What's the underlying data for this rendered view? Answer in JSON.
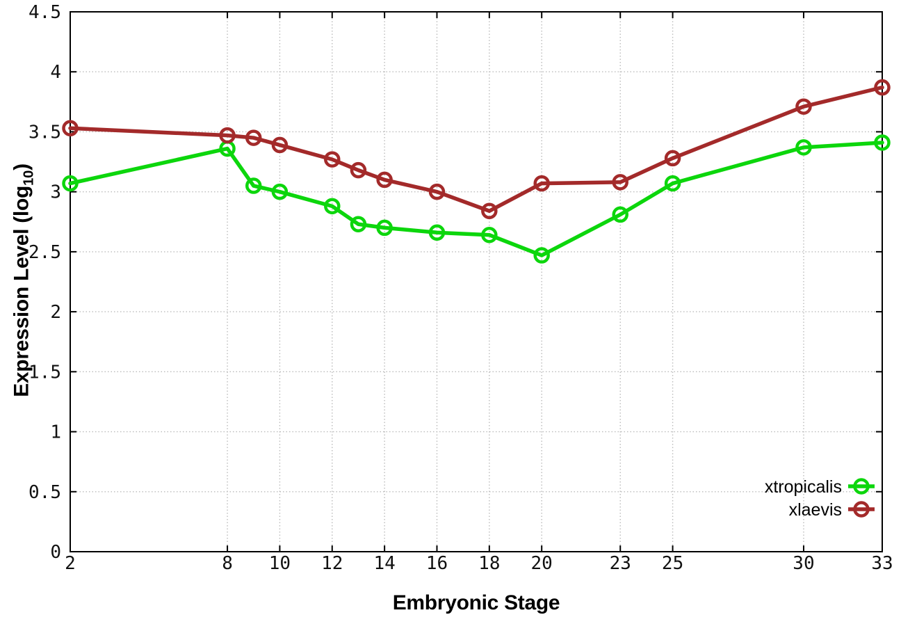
{
  "chart_data": {
    "type": "line",
    "title": "",
    "xlabel": "Embryonic Stage",
    "ylabel": "Expression Level (log10)",
    "ylabel_parts": {
      "pre": "Expression Level (log",
      "sub": "10",
      "post": ")"
    },
    "x_range": [
      2,
      33
    ],
    "y_range": [
      0,
      4.5
    ],
    "x_ticks": [
      {
        "v": 2,
        "label": "2"
      },
      {
        "v": 8,
        "label": "8"
      },
      {
        "v": 10,
        "label": "10"
      },
      {
        "v": 12,
        "label": "12"
      },
      {
        "v": 14,
        "label": "14"
      },
      {
        "v": 16,
        "label": "16"
      },
      {
        "v": 18,
        "label": "18"
      },
      {
        "v": 20,
        "label": "20"
      },
      {
        "v": 23,
        "label": "23"
      },
      {
        "v": 25,
        "label": "25"
      },
      {
        "v": 30,
        "label": "30"
      },
      {
        "v": 33,
        "label": "33"
      }
    ],
    "y_ticks": [
      {
        "v": 0,
        "label": "0"
      },
      {
        "v": 0.5,
        "label": "0.5"
      },
      {
        "v": 1,
        "label": "1"
      },
      {
        "v": 1.5,
        "label": "1.5"
      },
      {
        "v": 2,
        "label": "2"
      },
      {
        "v": 2.5,
        "label": "2.5"
      },
      {
        "v": 3,
        "label": "3"
      },
      {
        "v": 3.5,
        "label": "3.5"
      },
      {
        "v": 4,
        "label": "4"
      },
      {
        "v": 4.5,
        "label": "4.5"
      }
    ],
    "grid": true,
    "legend_position": "inside-bottom-right",
    "x": [
      2,
      8,
      9,
      10,
      12,
      13,
      14,
      16,
      18,
      20,
      23,
      25,
      30,
      33
    ],
    "series": [
      {
        "name": "xtropicalis",
        "color": "#0cd60c",
        "marker": "open-circle",
        "values": [
          3.07,
          3.36,
          3.05,
          3.0,
          2.88,
          2.73,
          2.7,
          2.66,
          2.64,
          2.47,
          2.81,
          3.07,
          3.37,
          3.41
        ]
      },
      {
        "name": "xlaevis",
        "color": "#a32a2a",
        "marker": "open-circle",
        "values": [
          3.53,
          3.47,
          3.45,
          3.39,
          3.27,
          3.18,
          3.1,
          3.0,
          2.84,
          3.07,
          3.08,
          3.28,
          3.71,
          3.87
        ]
      }
    ],
    "style": {
      "border_color": "#000000",
      "grid_color": "#bbbbbb",
      "tick_label_color": "#111111",
      "background": "#ffffff"
    }
  }
}
